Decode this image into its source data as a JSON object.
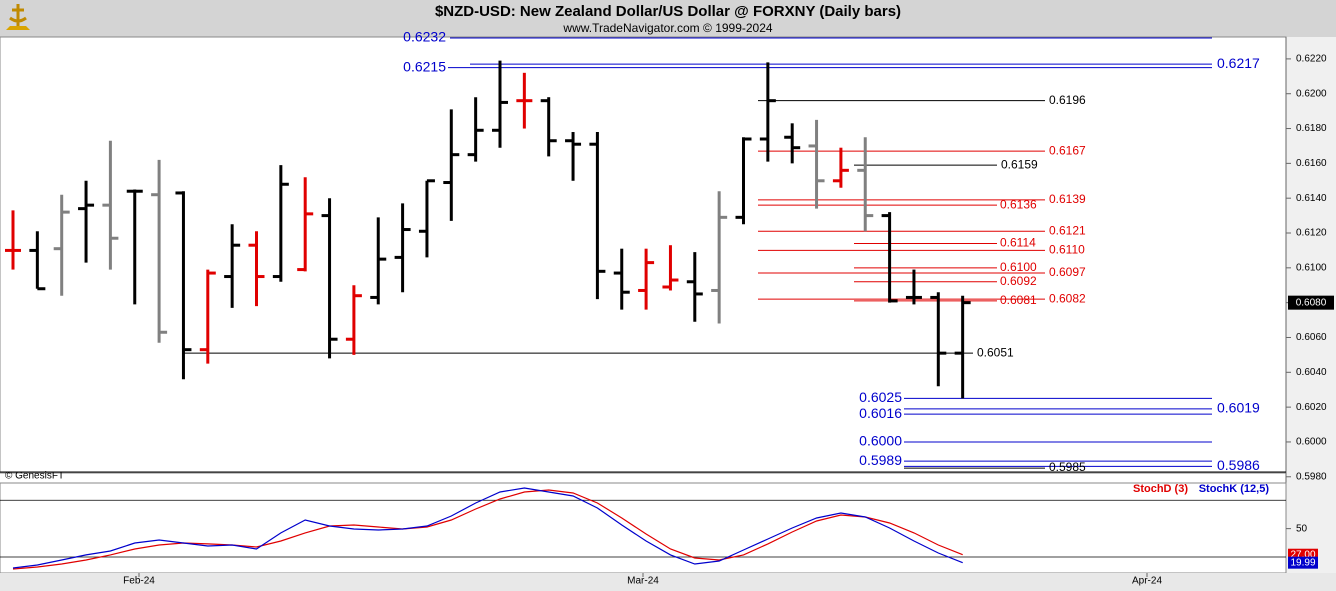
{
  "chart_data": [
    {
      "type": "ohlc",
      "title": "$NZD-USD:  New Zealand Dollar/US Dollar @ FORXNY  (Daily bars)",
      "subtitle": "www.TradeNavigator.com © 1999-2024",
      "annotation": "© GenesisFT",
      "ylim": [
        0.5977,
        0.6232
      ],
      "yticks": [
        {
          "value": 0.598,
          "label": "0.5980"
        },
        {
          "value": 0.6,
          "label": "0.6000"
        },
        {
          "value": 0.602,
          "label": "0.6020"
        },
        {
          "value": 0.604,
          "label": "0.6040"
        },
        {
          "value": 0.606,
          "label": "0.6060"
        },
        {
          "value": 0.608,
          "label": "0.6080"
        },
        {
          "value": 0.61,
          "label": "0.6100"
        },
        {
          "value": 0.612,
          "label": "0.6120"
        },
        {
          "value": 0.614,
          "label": "0.6140"
        },
        {
          "value": 0.616,
          "label": "0.6160"
        },
        {
          "value": 0.618,
          "label": "0.6180"
        },
        {
          "value": 0.62,
          "label": "0.6200"
        },
        {
          "value": 0.622,
          "label": "0.6220"
        }
      ],
      "date_labels": [
        "Feb-24",
        "Mar-24",
        "Apr-24"
      ],
      "last_price": {
        "value": 0.608,
        "label": "0.6080"
      },
      "open": [
        0.611,
        0.611,
        0.6111,
        0.6134,
        0.6136,
        0.6144,
        0.6142,
        0.6143,
        0.6053,
        0.6095,
        0.6113,
        0.6095,
        0.6099,
        0.613,
        0.6059,
        0.6083,
        0.6106,
        0.6121,
        0.6149,
        0.6165,
        0.6179,
        0.6196,
        0.6196,
        0.6173,
        0.6171,
        0.6097,
        0.6087,
        0.6089,
        0.6092,
        0.6087,
        0.6129,
        0.6174,
        0.6175,
        0.617,
        0.615,
        0.6156,
        0.613,
        0.6083,
        0.6083,
        0.6051
      ],
      "high": [
        0.6133,
        0.6121,
        0.6142,
        0.615,
        0.6173,
        0.6145,
        0.6162,
        0.6144,
        0.6099,
        0.6125,
        0.6121,
        0.6159,
        0.6152,
        0.614,
        0.609,
        0.6129,
        0.6137,
        0.615,
        0.6191,
        0.6198,
        0.6219,
        0.6212,
        0.6198,
        0.6178,
        0.6178,
        0.6111,
        0.6111,
        0.6113,
        0.6109,
        0.6144,
        0.6175,
        0.6218,
        0.6183,
        0.6185,
        0.6169,
        0.6175,
        0.6132,
        0.6099,
        0.6086,
        0.6084
      ],
      "low": [
        0.6099,
        0.6088,
        0.6084,
        0.6103,
        0.6099,
        0.6079,
        0.6057,
        0.6036,
        0.6045,
        0.6077,
        0.6078,
        0.6092,
        0.6098,
        0.6048,
        0.605,
        0.6079,
        0.6086,
        0.6106,
        0.6127,
        0.6161,
        0.6169,
        0.618,
        0.6164,
        0.615,
        0.6082,
        0.6076,
        0.6076,
        0.6087,
        0.6069,
        0.6068,
        0.6125,
        0.6161,
        0.616,
        0.6134,
        0.6146,
        0.6121,
        0.608,
        0.6079,
        0.6032,
        0.6025
      ],
      "close": [
        0.611,
        0.6088,
        0.6132,
        0.6136,
        0.6117,
        0.6144,
        0.6063,
        0.6053,
        0.6097,
        0.6113,
        0.6095,
        0.6148,
        0.6131,
        0.6059,
        0.6084,
        0.6105,
        0.6122,
        0.615,
        0.6165,
        0.6179,
        0.6195,
        0.6196,
        0.6173,
        0.6171,
        0.6098,
        0.6086,
        0.6103,
        0.6093,
        0.6085,
        0.6129,
        0.6174,
        0.6196,
        0.6169,
        0.615,
        0.6156,
        0.613,
        0.6081,
        0.6083,
        0.6051,
        0.608
      ],
      "colors": [
        "#e00000",
        "#000000",
        "#808080",
        "#000000",
        "#808080",
        "#000000",
        "#808080",
        "#000000",
        "#e00000",
        "#000000",
        "#e00000",
        "#000000",
        "#e00000",
        "#000000",
        "#e00000",
        "#000000",
        "#000000",
        "#000000",
        "#000000",
        "#000000",
        "#000000",
        "#e00000",
        "#000000",
        "#000000",
        "#000000",
        "#000000",
        "#e00000",
        "#e00000",
        "#000000",
        "#808080",
        "#000000",
        "#000000",
        "#000000",
        "#808080",
        "#e00000",
        "#808080",
        "#000000",
        "#000000",
        "#000000",
        "#000000"
      ],
      "levels": [
        {
          "value": 0.6232,
          "label": "0.6232",
          "color": "#0000cc"
        },
        {
          "value": 0.6215,
          "label": "0.6215",
          "color": "#0000cc"
        },
        {
          "value": 0.6217,
          "label": "0.6217",
          "color": "#0000cc"
        },
        {
          "value": 0.6196,
          "label": "0.6196",
          "color": "#000000"
        },
        {
          "value": 0.6167,
          "label": "0.6167",
          "color": "#e00000"
        },
        {
          "value": 0.6159,
          "label": "0.6159",
          "color": "#000000"
        },
        {
          "value": 0.6139,
          "label": "0.6139",
          "color": "#e00000"
        },
        {
          "value": 0.6136,
          "label": "0.6136",
          "color": "#e00000"
        },
        {
          "value": 0.6121,
          "label": "0.6121",
          "color": "#e00000"
        },
        {
          "value": 0.6114,
          "label": "0.6114",
          "color": "#e00000"
        },
        {
          "value": 0.611,
          "label": "0.6110",
          "color": "#e00000"
        },
        {
          "value": 0.61,
          "label": "0.6100",
          "color": "#e00000"
        },
        {
          "value": 0.6097,
          "label": "0.6097",
          "color": "#e00000"
        },
        {
          "value": 0.6092,
          "label": "0.6092",
          "color": "#e00000"
        },
        {
          "value": 0.6081,
          "label": "0.6081",
          "color": "#e00000"
        },
        {
          "value": 0.6082,
          "label": "0.6082",
          "color": "#e00000"
        },
        {
          "value": 0.6051,
          "label": "0.6051",
          "color": "#000000"
        },
        {
          "value": 0.6025,
          "label": "0.6025",
          "color": "#0000cc"
        },
        {
          "value": 0.6019,
          "label": "0.6019",
          "color": "#0000cc"
        },
        {
          "value": 0.6016,
          "label": "0.6016",
          "color": "#0000cc"
        },
        {
          "value": 0.6,
          "label": "0.6000",
          "color": "#0000cc"
        },
        {
          "value": 0.5989,
          "label": "0.5989",
          "color": "#0000cc"
        },
        {
          "value": 0.5986,
          "label": "0.5986",
          "color": "#0000cc"
        },
        {
          "value": 0.5985,
          "label": "0.5985",
          "color": "#000000"
        }
      ]
    },
    {
      "type": "line",
      "ylim": [
        10,
        92
      ],
      "yticks": [
        50
      ],
      "levels": [
        25,
        75
      ],
      "series": [
        {
          "name": "StochD (3)",
          "color": "#e00000",
          "end_label": "27.00",
          "values": [
            14.4,
            16.2,
            18.8,
            22.3,
            26.8,
            32,
            35.6,
            37.3,
            36.5,
            35.6,
            33.8,
            39.1,
            46.2,
            52.3,
            53.2,
            51.4,
            49.7,
            51.4,
            57.6,
            67.3,
            76.1,
            82.3,
            84.1,
            81.4,
            72.6,
            59.4,
            45.3,
            32,
            24.1,
            22.3,
            26.8,
            36.5,
            47,
            56.7,
            62,
            60.3,
            55,
            46.2,
            35.6,
            27
          ]
        },
        {
          "name": "StochK (12,5)",
          "color": "#0000cc",
          "end_label": "19.99",
          "values": [
            15.3,
            17.9,
            22.3,
            26.8,
            30.3,
            37.3,
            40,
            37.3,
            34.7,
            35.6,
            32,
            46.2,
            57.6,
            52.3,
            49.7,
            48.8,
            49.7,
            52.3,
            61.1,
            72.6,
            82.3,
            85.8,
            82.3,
            78.8,
            68.2,
            53.2,
            39.1,
            26.8,
            18.8,
            21.5,
            31.2,
            40.9,
            50.6,
            59.4,
            63.8,
            60.3,
            50.6,
            39.1,
            28.5,
            19.99
          ]
        }
      ]
    }
  ]
}
